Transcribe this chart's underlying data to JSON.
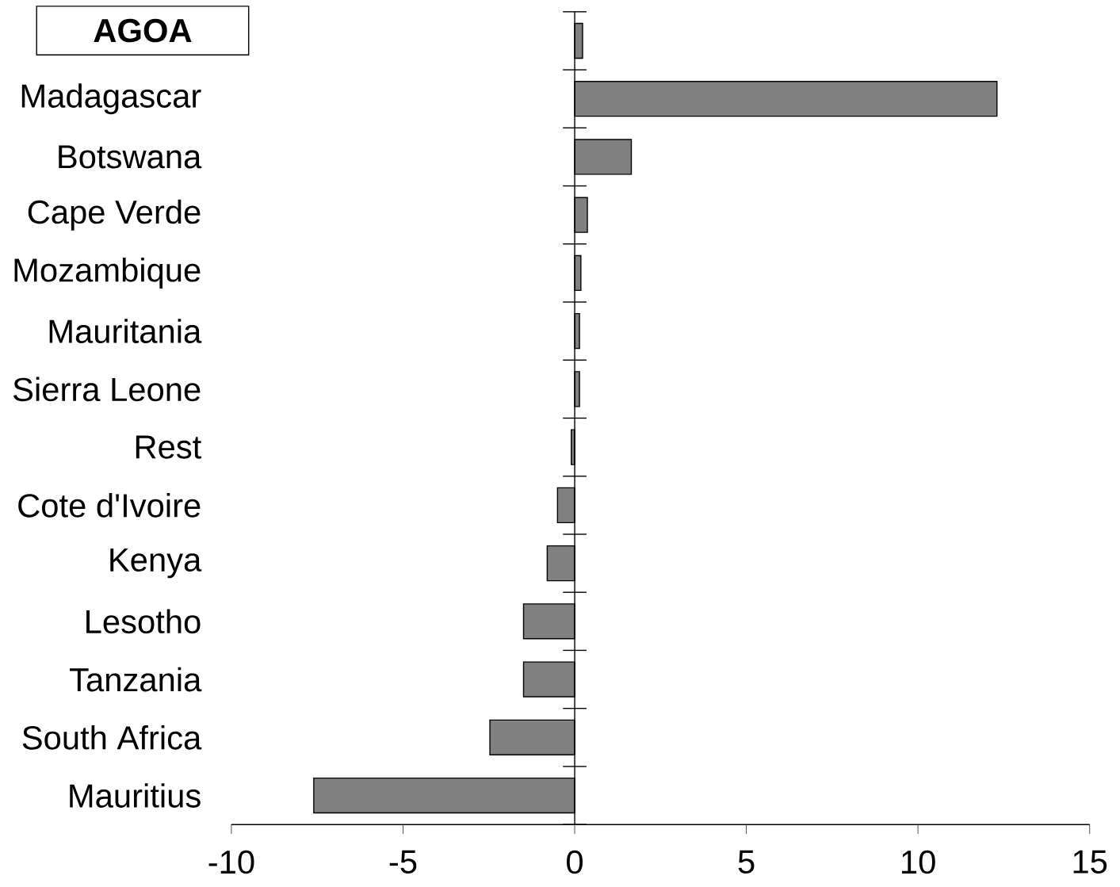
{
  "chart_data": {
    "type": "bar",
    "orientation": "horizontal",
    "title": "AGOA",
    "categories": [
      null,
      "Madagascar",
      "Botswana",
      "Cape Verde",
      "Mozambique",
      "Mauritania",
      "Sierra Leone",
      "Rest",
      "Cote d'Ivoire",
      "Kenya",
      "Lesotho",
      "Tanzania",
      "South  Africa",
      "Mauritius"
    ],
    "values": [
      0.23,
      12.3,
      1.65,
      0.37,
      0.18,
      0.14,
      0.14,
      -0.1,
      -0.5,
      -0.8,
      -1.49,
      -1.49,
      -2.47,
      -7.6
    ],
    "color": "#808080",
    "xlim": [
      -10,
      15
    ],
    "xticks": [
      -10,
      -5,
      0,
      5,
      10,
      15
    ]
  }
}
